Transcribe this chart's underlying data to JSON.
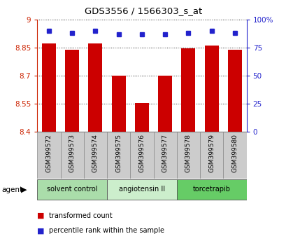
{
  "title": "GDS3556 / 1566303_s_at",
  "samples": [
    "GSM399572",
    "GSM399573",
    "GSM399574",
    "GSM399575",
    "GSM399576",
    "GSM399577",
    "GSM399578",
    "GSM399579",
    "GSM399580"
  ],
  "red_values": [
    8.875,
    8.838,
    8.875,
    8.7,
    8.553,
    8.7,
    8.848,
    8.862,
    8.838
  ],
  "blue_values": [
    90,
    88,
    90,
    87,
    87,
    87,
    88,
    90,
    88
  ],
  "ylim_left": [
    8.4,
    9.0
  ],
  "ylim_right": [
    0,
    100
  ],
  "yticks_left": [
    8.4,
    8.55,
    8.7,
    8.85,
    9.0
  ],
  "yticks_right": [
    0,
    25,
    50,
    75,
    100
  ],
  "ytick_labels_left": [
    "8.4",
    "8.55",
    "8.7",
    "8.85",
    "9"
  ],
  "ytick_labels_right": [
    "0",
    "25",
    "50",
    "75",
    "100%"
  ],
  "groups": [
    {
      "label": "solvent control",
      "indices": [
        0,
        1,
        2
      ],
      "color": "#aaddaa"
    },
    {
      "label": "angiotensin II",
      "indices": [
        3,
        4,
        5
      ],
      "color": "#cceecc"
    },
    {
      "label": "torcetrapib",
      "indices": [
        6,
        7,
        8
      ],
      "color": "#66cc66"
    }
  ],
  "agent_label": "agent",
  "red_color": "#cc0000",
  "blue_color": "#2222cc",
  "bar_width": 0.6,
  "marker_size": 5,
  "background_color": "#ffffff",
  "grid_color": "#000000",
  "tick_color_left": "#cc2200",
  "tick_color_right": "#2222cc",
  "legend_red_label": "transformed count",
  "legend_blue_label": "percentile rank within the sample",
  "box_color": "#cccccc"
}
